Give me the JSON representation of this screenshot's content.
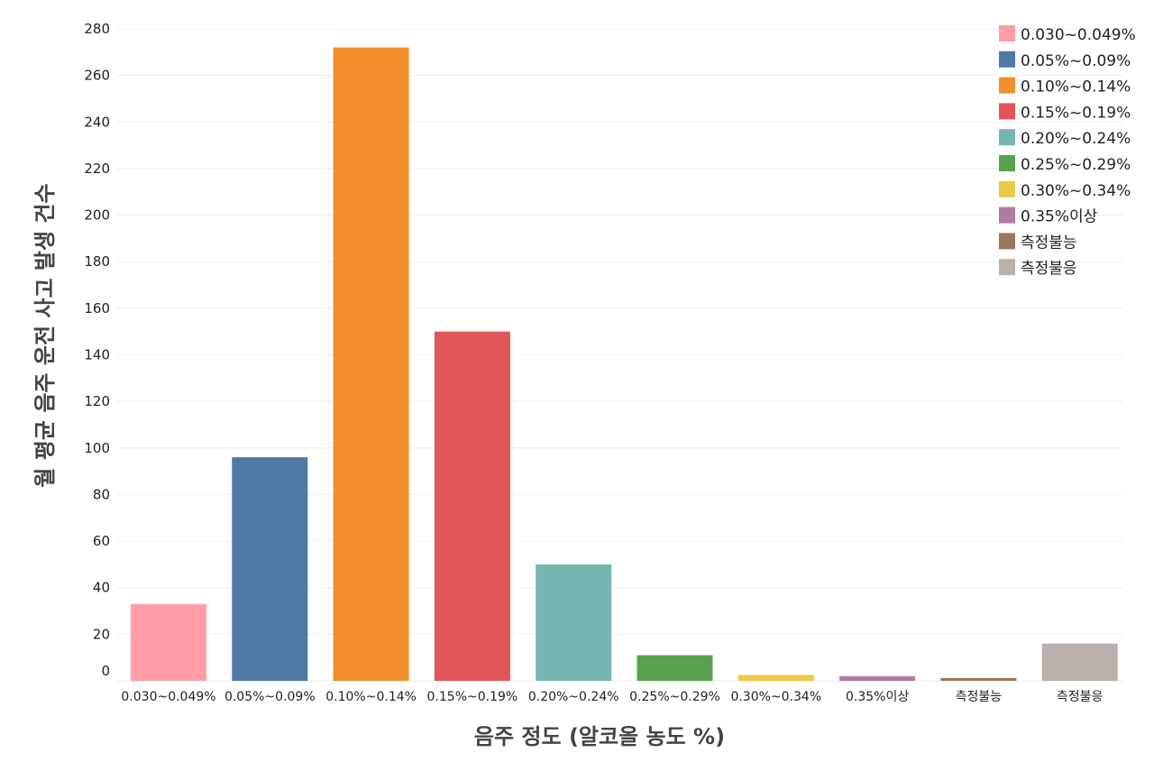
{
  "chart_data": {
    "type": "bar",
    "title": "",
    "xlabel": "음주 정도 (알코올 농도 %)",
    "ylabel": "월 평균 음주 운전 사고 발생 건수",
    "ylim": [
      0,
      280
    ],
    "yticks": [
      0,
      20,
      40,
      60,
      80,
      100,
      120,
      140,
      160,
      180,
      200,
      220,
      240,
      260,
      280
    ],
    "grid": true,
    "legend_position": "top-right",
    "categories": [
      "0.030~0.049%",
      "0.05%~0.09%",
      "0.10%~0.14%",
      "0.15%~0.19%",
      "0.20%~0.24%",
      "0.25%~0.29%",
      "0.30%~0.34%",
      "0.35%이상",
      "측정불능",
      "측정불응"
    ],
    "values": [
      33,
      96,
      272,
      150,
      50,
      11,
      2.5,
      2,
      1.2,
      16
    ],
    "colors": [
      "#ff9da7",
      "#4e79a7",
      "#f28e2b",
      "#e15759",
      "#76b7b2",
      "#59a14f",
      "#edc948",
      "#b07aa1",
      "#9c755f",
      "#bab0ac"
    ],
    "legend": [
      "0.030~0.049%",
      "0.05%~0.09%",
      "0.10%~0.14%",
      "0.15%~0.19%",
      "0.20%~0.24%",
      "0.25%~0.29%",
      "0.30%~0.34%",
      "0.35%이상",
      "측정불능",
      "측정불응"
    ]
  }
}
